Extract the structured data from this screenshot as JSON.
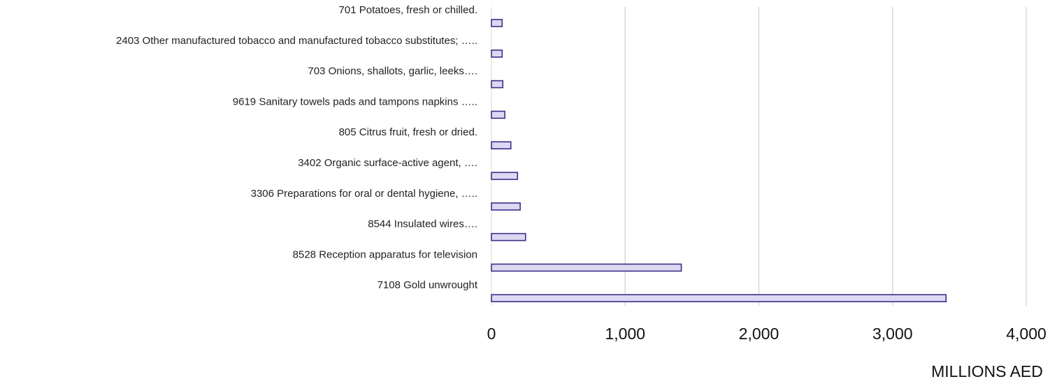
{
  "chart_data": {
    "type": "bar",
    "orientation": "horizontal",
    "categories": [
      "7108 Gold unwrought",
      "8528 Reception apparatus for television",
      "8544 Insulated wires….",
      "3306 Preparations for oral or dental hygiene, …..",
      "3402 Organic surface-active agent, ….",
      "805 Citrus fruit, fresh or dried.",
      "9619 Sanitary towels pads and tampons napkins …..",
      "703 Onions, shallots, garlic, leeks….",
      "2403 Other manufactured tobacco and manufactured tobacco substitutes; …..",
      "701 Potatoes, fresh or chilled."
    ],
    "values": [
      3400,
      1420,
      255,
      215,
      195,
      145,
      100,
      85,
      80,
      80
    ],
    "xlabel": "MILLIONS AED",
    "xlim": [
      0,
      4000
    ],
    "x_ticks": [
      "0",
      "1,000",
      "2,000",
      "3,000",
      "4,000"
    ],
    "grid": true,
    "colors": {
      "bar_fill": "#dcd8f2",
      "bar_stroke": "#3b2f86",
      "grid": "#d9d9d9"
    }
  }
}
